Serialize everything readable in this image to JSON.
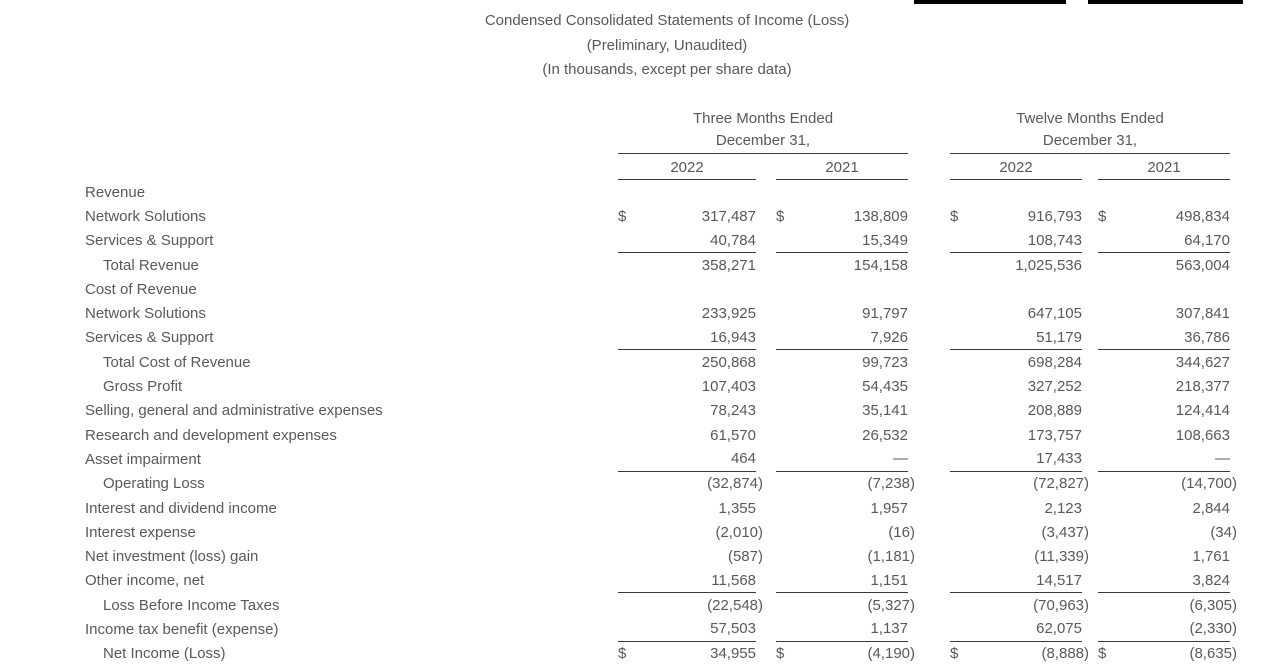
{
  "title": {
    "line1": "Condensed Consolidated Statements of Income (Loss)",
    "line2": "(Preliminary, Unaudited)",
    "line3": "(In thousands, except per share data)"
  },
  "currency_symbol": "$",
  "column_groups": [
    {
      "label": "Three Months Ended",
      "sublabel": "December 31,",
      "years": [
        "2022",
        "2021"
      ]
    },
    {
      "label": "Twelve Months Ended",
      "sublabel": "December 31,",
      "years": [
        "2022",
        "2021"
      ]
    }
  ],
  "rows": [
    {
      "label": "Revenue",
      "indent": 0,
      "dollar": false,
      "underline_below": false,
      "values": [
        "",
        "",
        "",
        ""
      ]
    },
    {
      "label": "Network Solutions",
      "indent": 0,
      "dollar": true,
      "underline_below": false,
      "values": [
        "317,487",
        "138,809",
        "916,793",
        "498,834"
      ]
    },
    {
      "label": "Services & Support",
      "indent": 0,
      "dollar": false,
      "underline_below": true,
      "values": [
        "40,784",
        "15,349",
        "108,743",
        "64,170"
      ]
    },
    {
      "label": "Total Revenue",
      "indent": 1,
      "dollar": false,
      "underline_below": false,
      "values": [
        "358,271",
        "154,158",
        "1,025,536",
        "563,004"
      ]
    },
    {
      "label": "Cost of Revenue",
      "indent": 0,
      "dollar": false,
      "underline_below": false,
      "values": [
        "",
        "",
        "",
        ""
      ]
    },
    {
      "label": "Network Solutions",
      "indent": 0,
      "dollar": false,
      "underline_below": false,
      "values": [
        "233,925",
        "91,797",
        "647,105",
        "307,841"
      ]
    },
    {
      "label": "Services & Support",
      "indent": 0,
      "dollar": false,
      "underline_below": true,
      "values": [
        "16,943",
        "7,926",
        "51,179",
        "36,786"
      ]
    },
    {
      "label": "Total Cost of Revenue",
      "indent": 1,
      "dollar": false,
      "underline_below": false,
      "values": [
        "250,868",
        "99,723",
        "698,284",
        "344,627"
      ]
    },
    {
      "label": "Gross Profit",
      "indent": 1,
      "dollar": false,
      "underline_below": false,
      "values": [
        "107,403",
        "54,435",
        "327,252",
        "218,377"
      ]
    },
    {
      "label": "Selling, general and administrative expenses",
      "indent": 0,
      "dollar": false,
      "underline_below": false,
      "values": [
        "78,243",
        "35,141",
        "208,889",
        "124,414"
      ]
    },
    {
      "label": "Research and development expenses",
      "indent": 0,
      "dollar": false,
      "underline_below": false,
      "values": [
        "61,570",
        "26,532",
        "173,757",
        "108,663"
      ]
    },
    {
      "label": "Asset impairment",
      "indent": 0,
      "dollar": false,
      "underline_below": true,
      "values": [
        "464",
        "—",
        "17,433",
        "—"
      ]
    },
    {
      "label": "Operating Loss",
      "indent": 1,
      "dollar": false,
      "underline_below": false,
      "values": [
        "(32,874)",
        "(7,238)",
        "(72,827)",
        "(14,700)"
      ]
    },
    {
      "label": "Interest and dividend income",
      "indent": 0,
      "dollar": false,
      "underline_below": false,
      "values": [
        "1,355",
        "1,957",
        "2,123",
        "2,844"
      ]
    },
    {
      "label": "Interest expense",
      "indent": 0,
      "dollar": false,
      "underline_below": false,
      "values": [
        "(2,010)",
        "(16)",
        "(3,437)",
        "(34)"
      ]
    },
    {
      "label": "Net investment (loss) gain",
      "indent": 0,
      "dollar": false,
      "underline_below": false,
      "values": [
        "(587)",
        "(1,181)",
        "(11,339)",
        "1,761"
      ]
    },
    {
      "label": "Other income, net",
      "indent": 0,
      "dollar": false,
      "underline_below": true,
      "values": [
        "11,568",
        "1,151",
        "14,517",
        "3,824"
      ]
    },
    {
      "label": "Loss Before Income Taxes",
      "indent": 1,
      "dollar": false,
      "underline_below": false,
      "values": [
        "(22,548)",
        "(5,327)",
        "(70,963)",
        "(6,305)"
      ]
    },
    {
      "label": "Income tax benefit (expense)",
      "indent": 0,
      "dollar": false,
      "underline_below": true,
      "values": [
        "57,503",
        "1,137",
        "62,075",
        "(2,330)"
      ]
    },
    {
      "label": "Net Income (Loss)",
      "indent": 1,
      "dollar": true,
      "underline_below": false,
      "values": [
        "34,955",
        "(4,190)",
        "(8,888)",
        "(8,635)"
      ]
    }
  ],
  "colors": {
    "text": "#595959",
    "rule": "#3a3a3a",
    "top_bar": "#000000"
  }
}
